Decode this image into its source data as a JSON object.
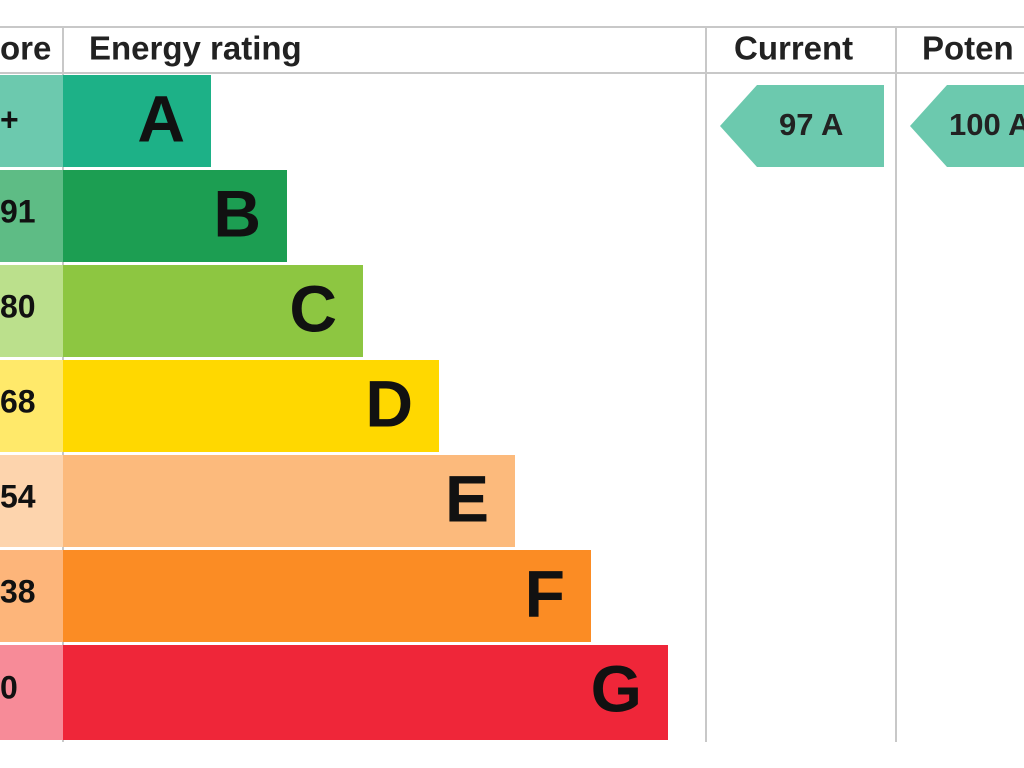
{
  "header": {
    "score": "ore",
    "rating": "Energy rating",
    "current": "Current",
    "potential": "Poten"
  },
  "bands": [
    {
      "score": "+",
      "letter": "A"
    },
    {
      "score": "91",
      "letter": "B"
    },
    {
      "score": "80",
      "letter": "C"
    },
    {
      "score": "68",
      "letter": "D"
    },
    {
      "score": "54",
      "letter": "E"
    },
    {
      "score": "38",
      "letter": "F"
    },
    {
      "score": "0",
      "letter": "G"
    }
  ],
  "current": "97 A",
  "potential": "100 A"
}
